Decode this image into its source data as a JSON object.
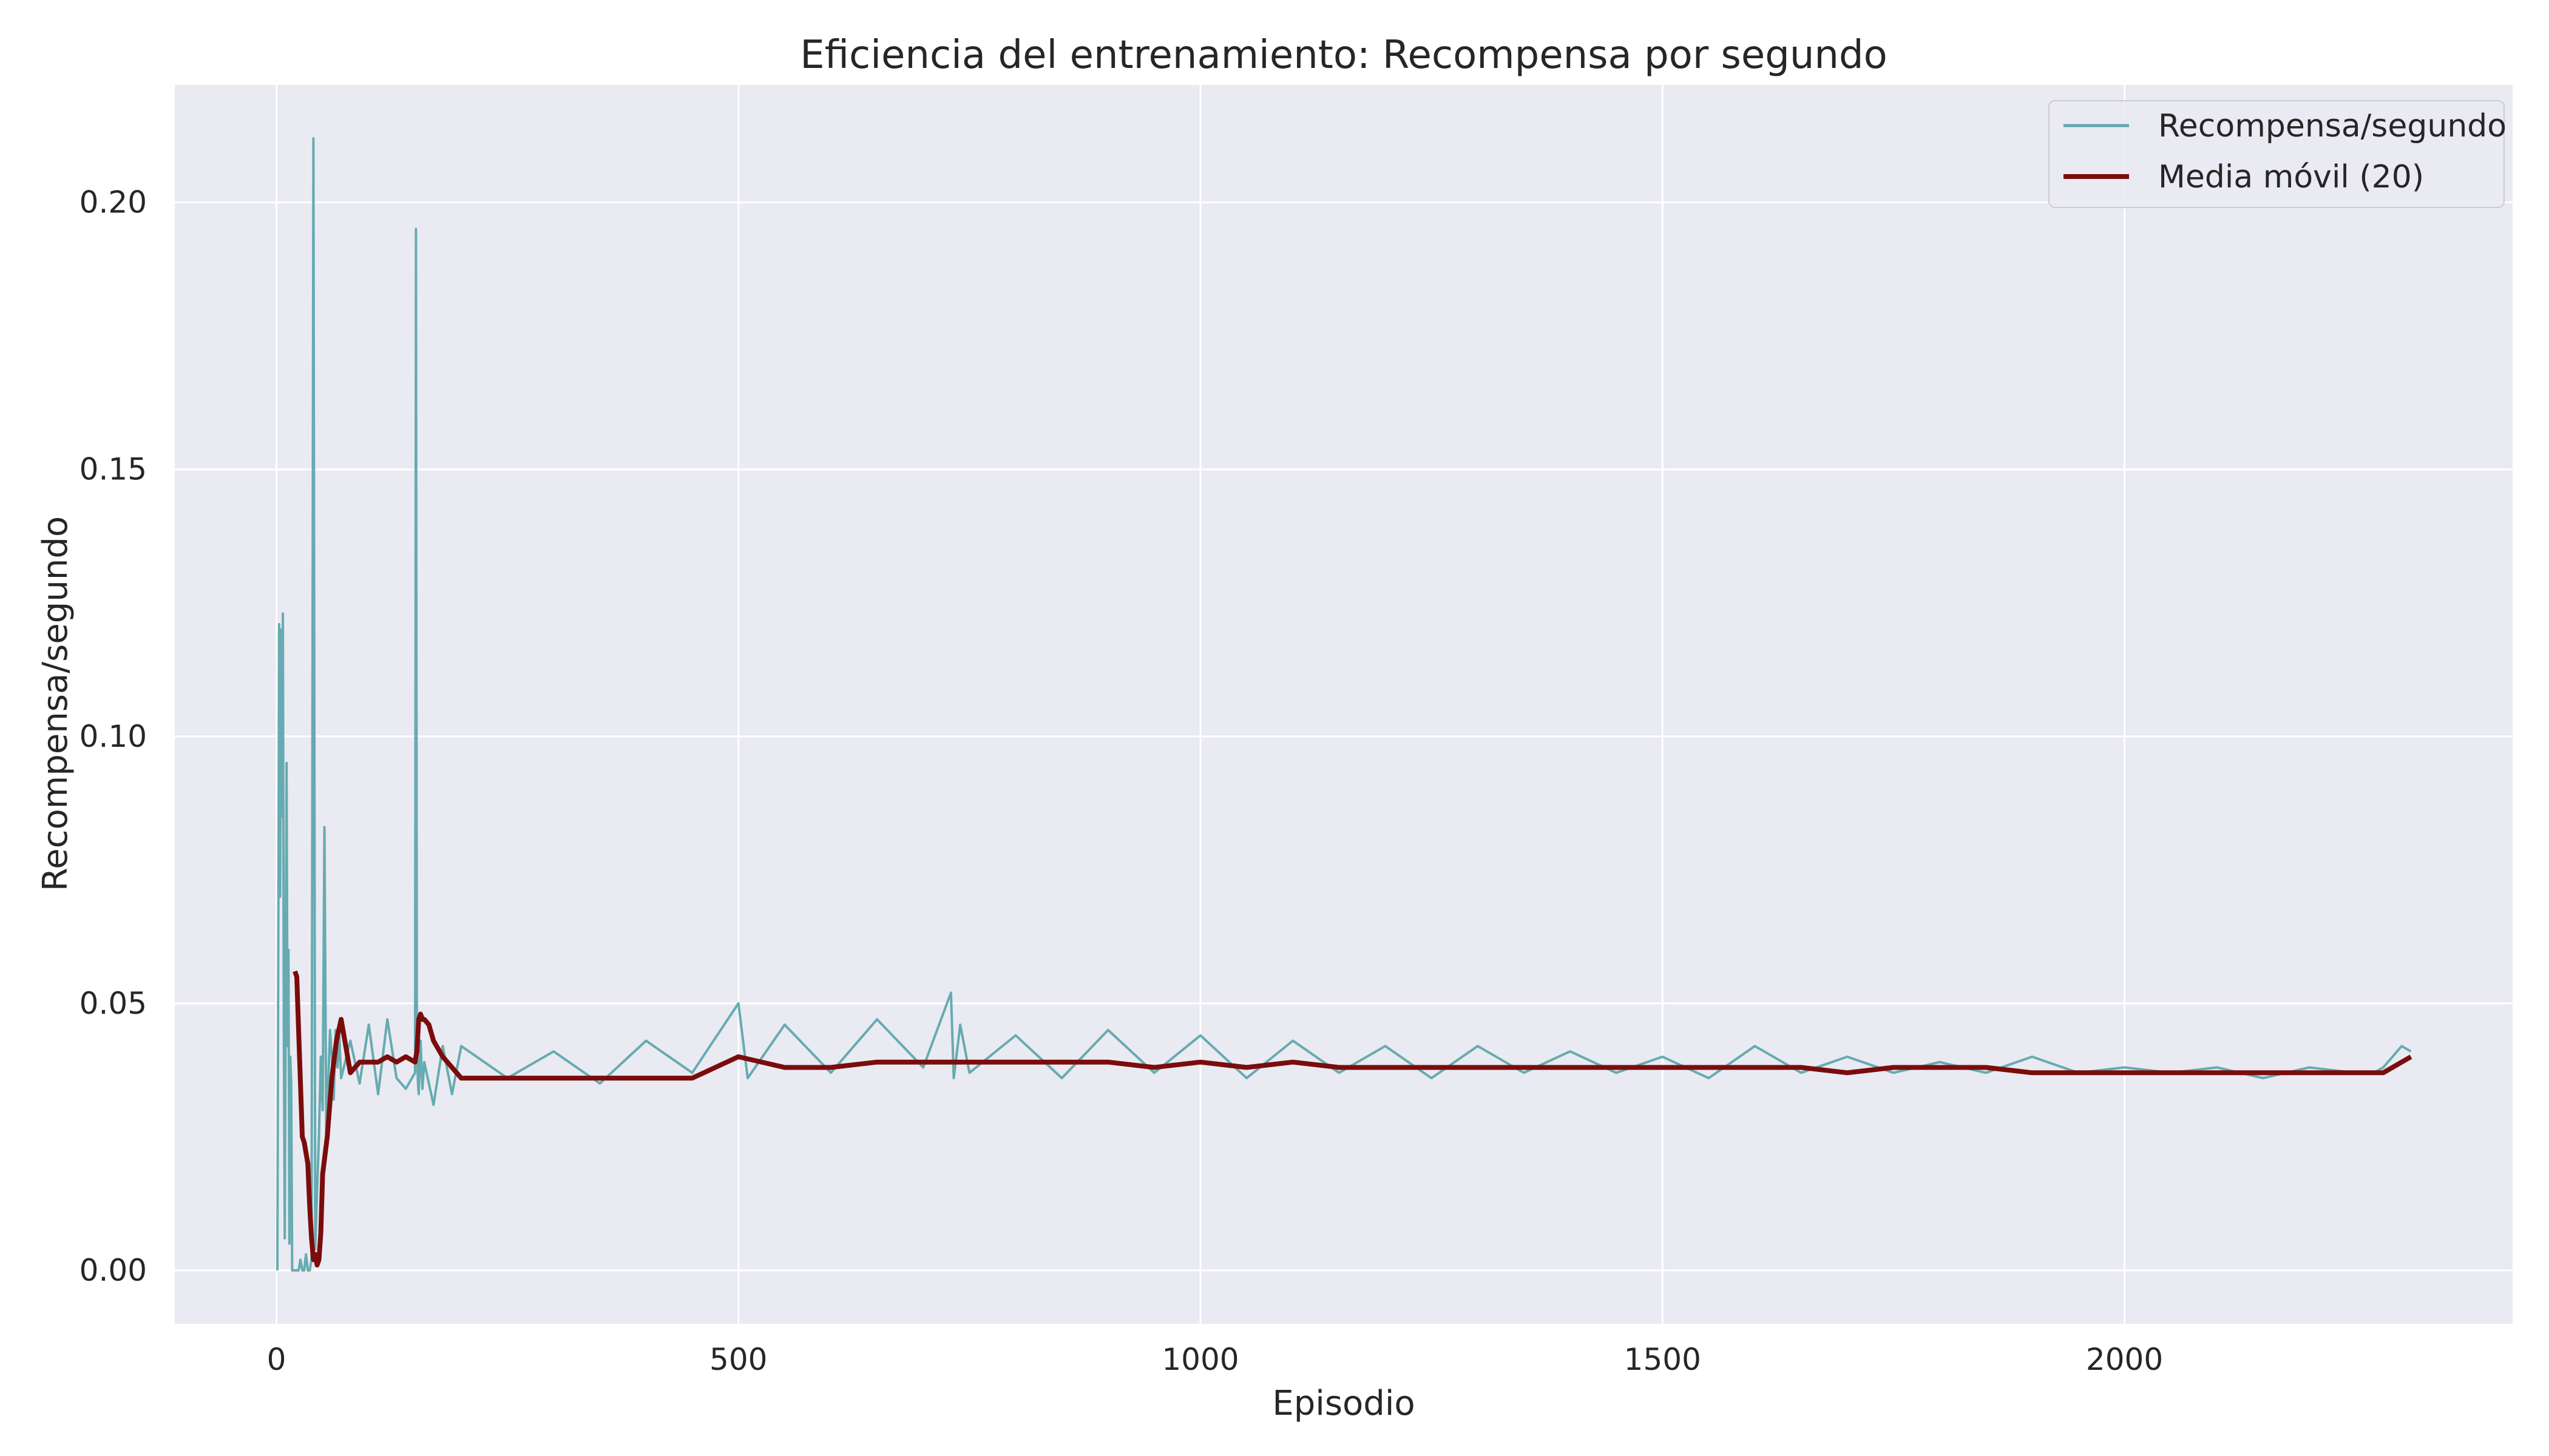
{
  "chart_data": {
    "type": "line",
    "title": "Eficiencia del entrenamiento: Recompensa por segundo",
    "xlabel": "Episodio",
    "ylabel": "Recompensa/segundo",
    "xlim": [
      -110,
      2420
    ],
    "ylim": [
      -0.01,
      0.222
    ],
    "x_ticks": [
      0,
      500,
      1000,
      1500,
      2000
    ],
    "y_ticks": [
      0.0,
      0.05,
      0.1,
      0.15,
      0.2
    ],
    "y_tick_labels": [
      "0.00",
      "0.05",
      "0.10",
      "0.15",
      "0.20"
    ],
    "grid": true,
    "legend_position": "top-right",
    "series": [
      {
        "name": "Recompensa/segundo",
        "color": "#5fa8ad",
        "x": [
          1,
          3,
          4,
          5,
          6,
          7,
          8,
          9,
          10,
          11,
          12,
          13,
          14,
          15,
          16,
          17,
          18,
          19,
          20,
          22,
          24,
          26,
          28,
          30,
          32,
          34,
          36,
          38,
          40,
          42,
          44,
          46,
          48,
          50,
          52,
          54,
          56,
          58,
          60,
          62,
          64,
          66,
          68,
          70,
          80,
          90,
          100,
          110,
          120,
          130,
          140,
          150,
          151,
          152,
          153,
          154,
          156,
          158,
          160,
          170,
          180,
          190,
          200,
          250,
          300,
          350,
          400,
          450,
          500,
          510,
          550,
          600,
          650,
          700,
          730,
          733,
          740,
          750,
          800,
          850,
          900,
          950,
          1000,
          1050,
          1100,
          1150,
          1200,
          1250,
          1300,
          1350,
          1400,
          1450,
          1500,
          1550,
          1600,
          1650,
          1700,
          1750,
          1800,
          1850,
          1900,
          1950,
          2000,
          2050,
          2100,
          2150,
          2200,
          2250,
          2270,
          2280,
          2290,
          2300,
          2310
        ],
        "y": [
          0.0,
          0.121,
          0.07,
          0.12,
          0.085,
          0.123,
          0.045,
          0.006,
          0.05,
          0.095,
          0.042,
          0.06,
          0.005,
          0.04,
          0.035,
          0.0,
          0.0,
          0.0,
          0.0,
          0.0,
          0.0,
          0.002,
          0.0,
          0.0,
          0.003,
          0.0,
          0.0,
          0.002,
          0.212,
          0.004,
          0.015,
          0.025,
          0.04,
          0.03,
          0.083,
          0.023,
          0.035,
          0.045,
          0.04,
          0.032,
          0.045,
          0.038,
          0.044,
          0.036,
          0.043,
          0.035,
          0.046,
          0.033,
          0.047,
          0.036,
          0.034,
          0.037,
          0.195,
          0.045,
          0.036,
          0.033,
          0.043,
          0.034,
          0.039,
          0.031,
          0.042,
          0.033,
          0.042,
          0.036,
          0.041,
          0.035,
          0.043,
          0.037,
          0.05,
          0.036,
          0.046,
          0.037,
          0.047,
          0.038,
          0.052,
          0.036,
          0.046,
          0.037,
          0.044,
          0.036,
          0.045,
          0.037,
          0.044,
          0.036,
          0.043,
          0.037,
          0.042,
          0.036,
          0.042,
          0.037,
          0.041,
          0.037,
          0.04,
          0.036,
          0.042,
          0.037,
          0.04,
          0.037,
          0.039,
          0.037,
          0.04,
          0.037,
          0.038,
          0.037,
          0.038,
          0.036,
          0.038,
          0.037,
          0.037,
          0.038,
          0.04,
          0.042,
          0.041
        ]
      },
      {
        "name": "Media móvil (20)",
        "color": "#7b0c0c",
        "x": [
          20,
          22,
          24,
          26,
          28,
          30,
          32,
          34,
          36,
          38,
          40,
          42,
          44,
          46,
          48,
          50,
          55,
          60,
          65,
          70,
          80,
          90,
          100,
          110,
          120,
          130,
          140,
          150,
          152,
          154,
          156,
          158,
          160,
          165,
          170,
          180,
          200,
          250,
          300,
          350,
          400,
          450,
          500,
          550,
          600,
          650,
          700,
          750,
          800,
          850,
          900,
          950,
          1000,
          1050,
          1100,
          1150,
          1200,
          1250,
          1300,
          1350,
          1400,
          1450,
          1500,
          1550,
          1600,
          1650,
          1700,
          1750,
          1800,
          1850,
          1900,
          1950,
          2000,
          2050,
          2100,
          2150,
          2200,
          2250,
          2280,
          2290,
          2300,
          2310
        ],
        "y": [
          0.056,
          0.055,
          0.045,
          0.035,
          0.025,
          0.024,
          0.022,
          0.02,
          0.012,
          0.006,
          0.002,
          0.003,
          0.001,
          0.002,
          0.007,
          0.018,
          0.025,
          0.036,
          0.043,
          0.047,
          0.037,
          0.039,
          0.039,
          0.039,
          0.04,
          0.039,
          0.04,
          0.039,
          0.041,
          0.047,
          0.048,
          0.047,
          0.047,
          0.046,
          0.043,
          0.04,
          0.036,
          0.036,
          0.036,
          0.036,
          0.036,
          0.036,
          0.04,
          0.038,
          0.038,
          0.039,
          0.039,
          0.039,
          0.039,
          0.039,
          0.039,
          0.038,
          0.039,
          0.038,
          0.039,
          0.038,
          0.038,
          0.038,
          0.038,
          0.038,
          0.038,
          0.038,
          0.038,
          0.038,
          0.038,
          0.038,
          0.037,
          0.038,
          0.038,
          0.038,
          0.037,
          0.037,
          0.037,
          0.037,
          0.037,
          0.037,
          0.037,
          0.037,
          0.037,
          0.038,
          0.039,
          0.04
        ]
      }
    ]
  }
}
